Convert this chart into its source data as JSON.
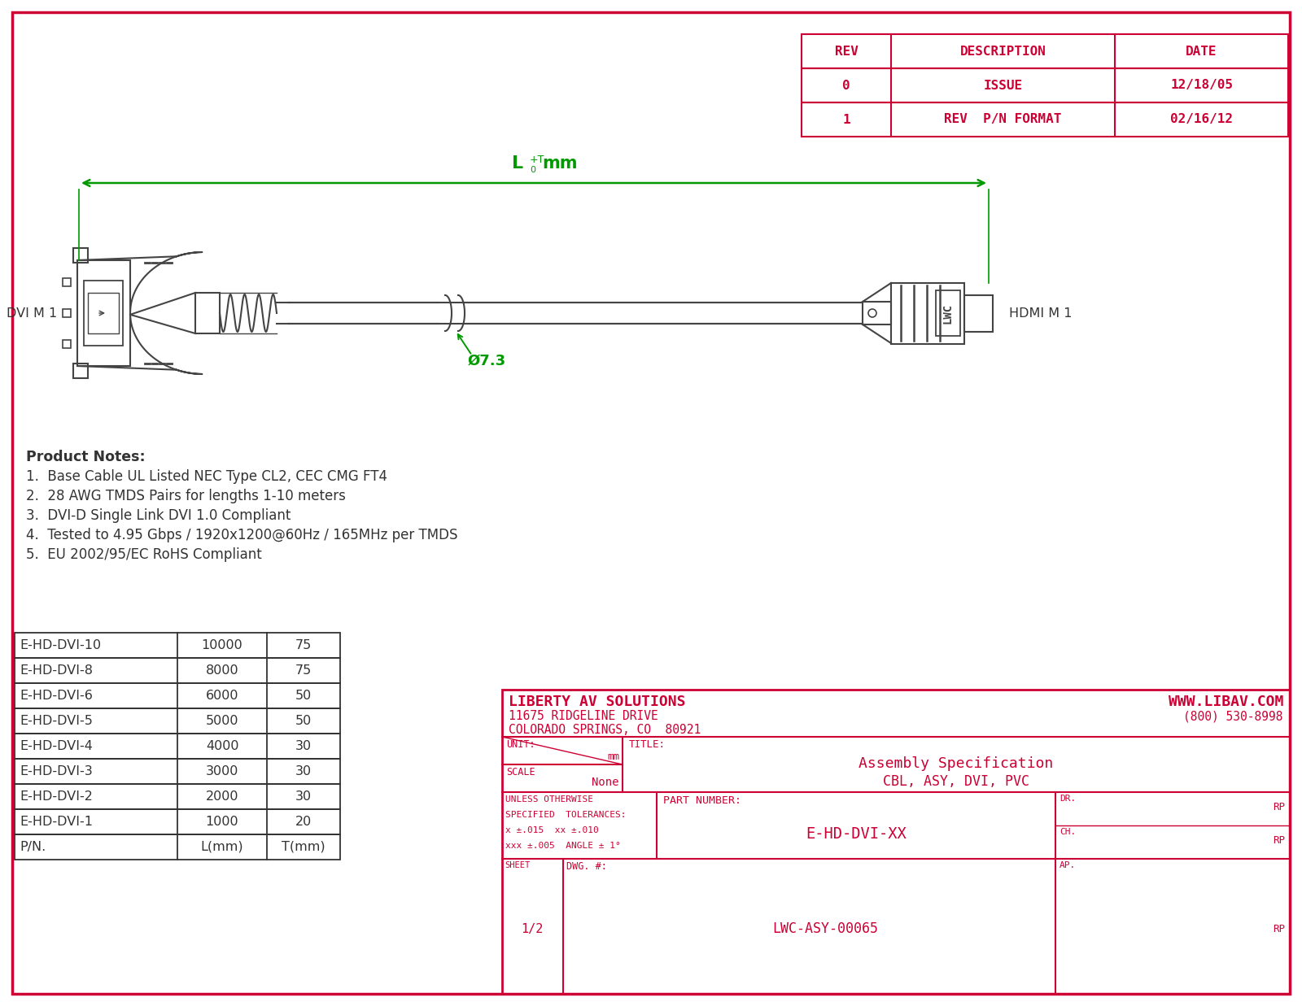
{
  "bg_color": "#ffffff",
  "border_color": "#cc0033",
  "red": "#cc0033",
  "black": "#333333",
  "green": "#009900",
  "cable_color": "#444444",
  "rev_table": {
    "headers": [
      "REV",
      "DESCRIPTION",
      "DATE"
    ],
    "rows": [
      [
        "0",
        "ISSUE",
        "12/18/05"
      ],
      [
        "1",
        "REV  P/N FORMAT",
        "02/16/12"
      ]
    ]
  },
  "notes_title": "Product Notes:",
  "notes": [
    "1.  Base Cable UL Listed NEC Type CL2, CEC CMG FT4",
    "2.  28 AWG TMDS Pairs for lengths 1-10 meters",
    "3.  DVI-D Single Link DVI 1.0 Compliant",
    "4.  Tested to 4.95 Gbps / 1920x1200@60Hz / 165MHz per TMDS",
    "5.  EU 2002/95/EC RoHS Compliant"
  ],
  "parts_rows": [
    [
      "E-HD-DVI-10",
      "10000",
      "75"
    ],
    [
      "E-HD-DVI-8",
      "8000",
      "75"
    ],
    [
      "E-HD-DVI-6",
      "6000",
      "50"
    ],
    [
      "E-HD-DVI-5",
      "5000",
      "50"
    ],
    [
      "E-HD-DVI-4",
      "4000",
      "30"
    ],
    [
      "E-HD-DVI-3",
      "3000",
      "30"
    ],
    [
      "E-HD-DVI-2",
      "2000",
      "30"
    ],
    [
      "E-HD-DVI-1",
      "1000",
      "20"
    ]
  ],
  "parts_footer": [
    "P/N.",
    "L(mm)",
    "T(mm)"
  ],
  "tb_company": "LIBERTY AV SOLUTIONS",
  "tb_website": "WWW.LIBAV.COM",
  "tb_addr1": "11675 RIDGELINE DRIVE",
  "tb_phone": "(800) 530-8998",
  "tb_addr2": "COLORADO SPRINGS, CO  80921",
  "tb_title1": "Assembly Specification",
  "tb_title2": "CBL, ASY, DVI, PVC",
  "tb_tol1": "UNLESS OTHERWISE",
  "tb_tol2": "SPECIFIED  TOLERANCES:",
  "tb_tol3": "x ±.015  xx ±.010",
  "tb_tol4": "xxx ±.005  ANGLE ± 1°",
  "tb_pn": "E-HD-DVI-XX",
  "tb_dwg": "LWC-ASY-00065",
  "label_dvi": "DVI M 1",
  "label_hdmi": "HDMI M 1"
}
